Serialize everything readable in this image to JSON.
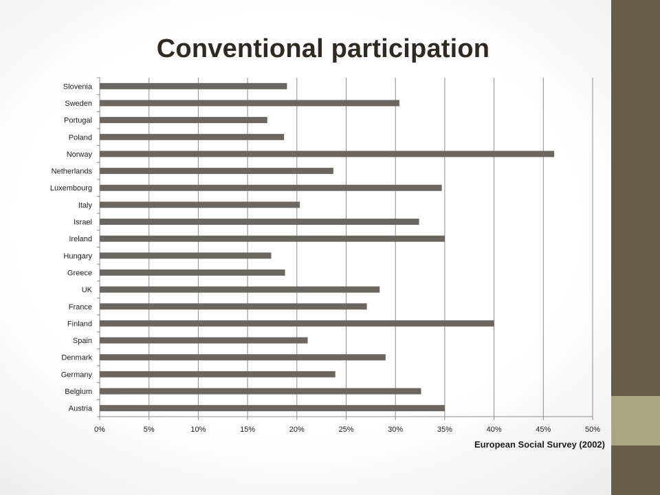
{
  "slide": {
    "title": "Conventional participation",
    "source": "European Social Survey (2002)"
  },
  "colors": {
    "bar": "#6b6760",
    "side_bar": "#675d49",
    "side_accent": "#aaa67f",
    "grid": "#8c8c8c"
  },
  "chart_data": {
    "type": "bar",
    "orientation": "horizontal",
    "title": "Conventional participation",
    "xlabel": "",
    "ylabel": "",
    "xlim": [
      0,
      50
    ],
    "x_ticks": [
      "0%",
      "5%",
      "10%",
      "15%",
      "20%",
      "25%",
      "30%",
      "35%",
      "40%",
      "45%",
      "50%"
    ],
    "grid": "vertical",
    "legend": "none",
    "categories": [
      "Slovenia",
      "Sweden",
      "Portugal",
      "Poland",
      "Norway",
      "Netherlands",
      "Luxembourg",
      "Italy",
      "Israel",
      "Ireland",
      "Hungary",
      "Greece",
      "UK",
      "France",
      "Finland",
      "Spain",
      "Denmark",
      "Germany",
      "Belgium",
      "Austria"
    ],
    "values": [
      19.0,
      30.4,
      17.0,
      18.7,
      46.1,
      23.7,
      34.7,
      20.3,
      32.4,
      35.0,
      17.4,
      18.8,
      28.4,
      27.1,
      40.0,
      21.1,
      29.0,
      23.9,
      32.6,
      35.0
    ]
  }
}
